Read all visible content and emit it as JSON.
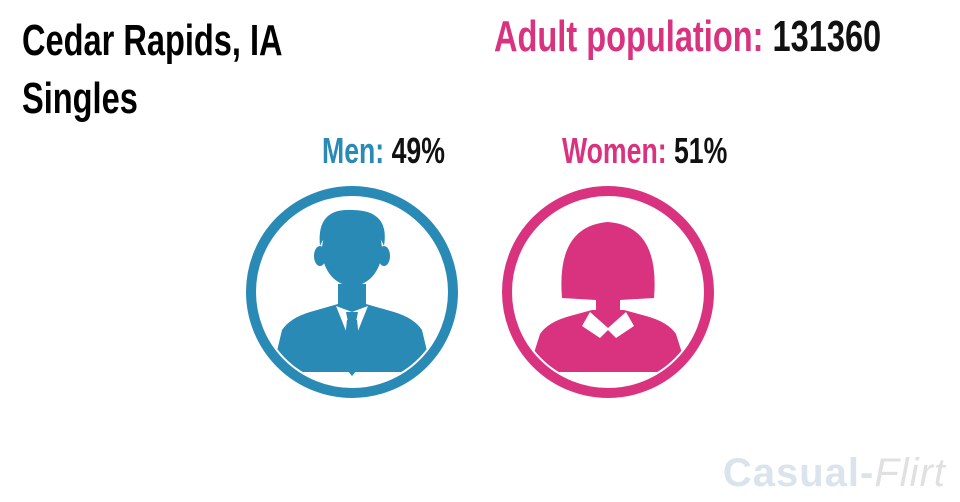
{
  "title": {
    "line1": "Cedar Rapids, IA",
    "line2": "Singles"
  },
  "adult_population": {
    "label": "Adult population:",
    "value": "131360"
  },
  "men": {
    "label": "Men:",
    "value": "49%",
    "color": "#2a8ab6",
    "icon": "man-icon"
  },
  "women": {
    "label": "Women:",
    "value": "51%",
    "color": "#d93380",
    "icon": "woman-icon"
  },
  "brand": {
    "part1": "Casual",
    "separator": "-",
    "part2": "Flirt"
  }
}
